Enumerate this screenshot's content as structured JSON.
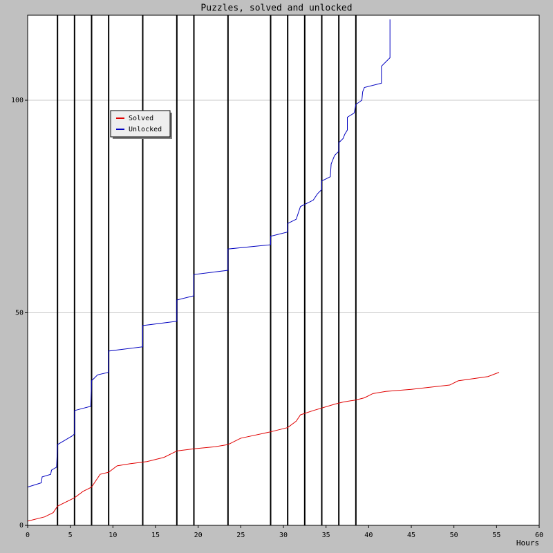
{
  "chart_data": {
    "type": "line",
    "title": "Puzzles, solved and unlocked",
    "x_label": "Hours",
    "xlim": [
      0,
      60
    ],
    "ylim": [
      0,
      120
    ],
    "xticks": [
      0,
      5,
      10,
      15,
      20,
      25,
      30,
      35,
      40,
      45,
      50,
      55,
      60
    ],
    "yticks": [
      0,
      50,
      100
    ],
    "grid": true,
    "legend": "upper-left",
    "vlines": [
      3.5,
      5.5,
      7.5,
      9.5,
      13.5,
      17.5,
      19.5,
      23.5,
      28.5,
      30.5,
      32.5,
      34.5,
      36.5,
      38.5
    ],
    "series": [
      {
        "name": "Solved",
        "color": "#e00000",
        "x": [
          0,
          2,
          3,
          3.5,
          5.5,
          6.5,
          7.5,
          8.5,
          9.5,
          10.5,
          12,
          14,
          16,
          17.5,
          19.5,
          22,
          23.5,
          25,
          28.5,
          30.5,
          31.5,
          32,
          33.5,
          36,
          37,
          38.5,
          39.5,
          40.5,
          42,
          45,
          49.5,
          50.5,
          54,
          55.3
        ],
        "values": [
          1,
          2,
          3,
          4.5,
          6.5,
          8,
          9,
          12,
          12.5,
          14,
          14.5,
          15,
          16,
          17.5,
          18,
          18.5,
          19,
          20.5,
          22,
          23,
          24.5,
          26,
          27,
          28.5,
          29,
          29.5,
          30,
          31,
          31.5,
          32,
          33,
          34,
          35,
          36
        ]
      },
      {
        "name": "Unlocked",
        "color": "#0000c0",
        "x": [
          0,
          1.6,
          1.7,
          2.7,
          2.8,
          3.4,
          3.5,
          5.2,
          5.5,
          5.5,
          7.4,
          7.5,
          8.2,
          9.5,
          9.5,
          13.5,
          13.5,
          17.5,
          17.5,
          19.5,
          19.5,
          23.5,
          23.5,
          28.5,
          28.5,
          30.5,
          30.5,
          31.5,
          32,
          33.5,
          34,
          34.5,
          34.5,
          35.5,
          35.6,
          36,
          36.5,
          36.5,
          37,
          37.2,
          37.5,
          37.5,
          38.3,
          38.5,
          39.2,
          39.3,
          39.5,
          41.5,
          41.5,
          42.5,
          42.5
        ],
        "values": [
          9,
          10,
          11.4,
          12,
          13,
          13.7,
          19,
          21,
          21.5,
          27,
          28,
          34,
          35.4,
          36,
          41,
          42,
          47,
          48,
          53,
          54,
          59,
          60,
          65,
          66,
          68,
          69,
          71,
          72,
          75,
          76.5,
          78,
          79,
          81,
          82,
          85,
          87,
          88,
          90,
          91,
          92,
          93,
          96,
          97,
          99,
          100,
          102,
          103,
          104,
          108,
          110,
          119
        ]
      }
    ]
  }
}
